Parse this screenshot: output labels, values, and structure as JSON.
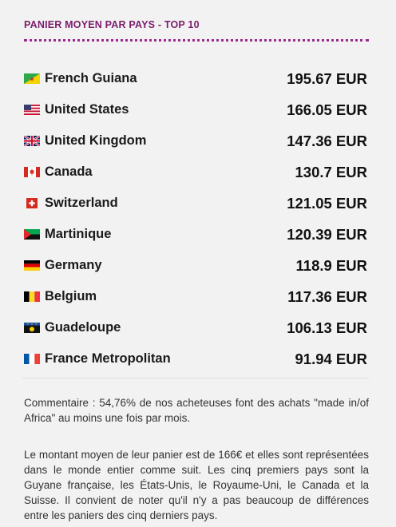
{
  "header": {
    "title": "PANIER MOYEN PAR PAYS - TOP 10"
  },
  "rows": [
    {
      "country": "French Guiana",
      "value": "195.67 EUR",
      "flag": "french-guiana-flag-icon"
    },
    {
      "country": "United States",
      "value": "166.05 EUR",
      "flag": "united-states-flag-icon"
    },
    {
      "country": "United Kingdom",
      "value": "147.36 EUR",
      "flag": "united-kingdom-flag-icon"
    },
    {
      "country": "Canada",
      "value": "130.7 EUR",
      "flag": "canada-flag-icon"
    },
    {
      "country": "Switzerland",
      "value": "121.05 EUR",
      "flag": "switzerland-flag-icon"
    },
    {
      "country": "Martinique",
      "value": "120.39 EUR",
      "flag": "martinique-flag-icon"
    },
    {
      "country": "Germany",
      "value": "118.9 EUR",
      "flag": "germany-flag-icon"
    },
    {
      "country": "Belgium",
      "value": "117.36 EUR",
      "flag": "belgium-flag-icon"
    },
    {
      "country": "Guadeloupe",
      "value": "106.13 EUR",
      "flag": "guadeloupe-flag-icon"
    },
    {
      "country": "France Metropolitan",
      "value": "91.94 EUR",
      "flag": "france-flag-icon"
    }
  ],
  "comments": {
    "first": "Commentaire : 54,76% de nos acheteuses font des achats \"made in/of Africa\" au moins une fois par mois.",
    "second": "Le montant moyen de leur panier est de 166€ et elles sont représentées dans le monde entier comme suit. Les cinq premiers pays sont la Guyane française, les États-Unis, le Royaume-Uni, le Canada et la Suisse. Il convient de noter qu'il n'y a pas beaucoup de différences entre les paniers des cinq derniers pays."
  },
  "colors": {
    "accent": "#7b1e6e",
    "background": "#f2f2f2"
  }
}
